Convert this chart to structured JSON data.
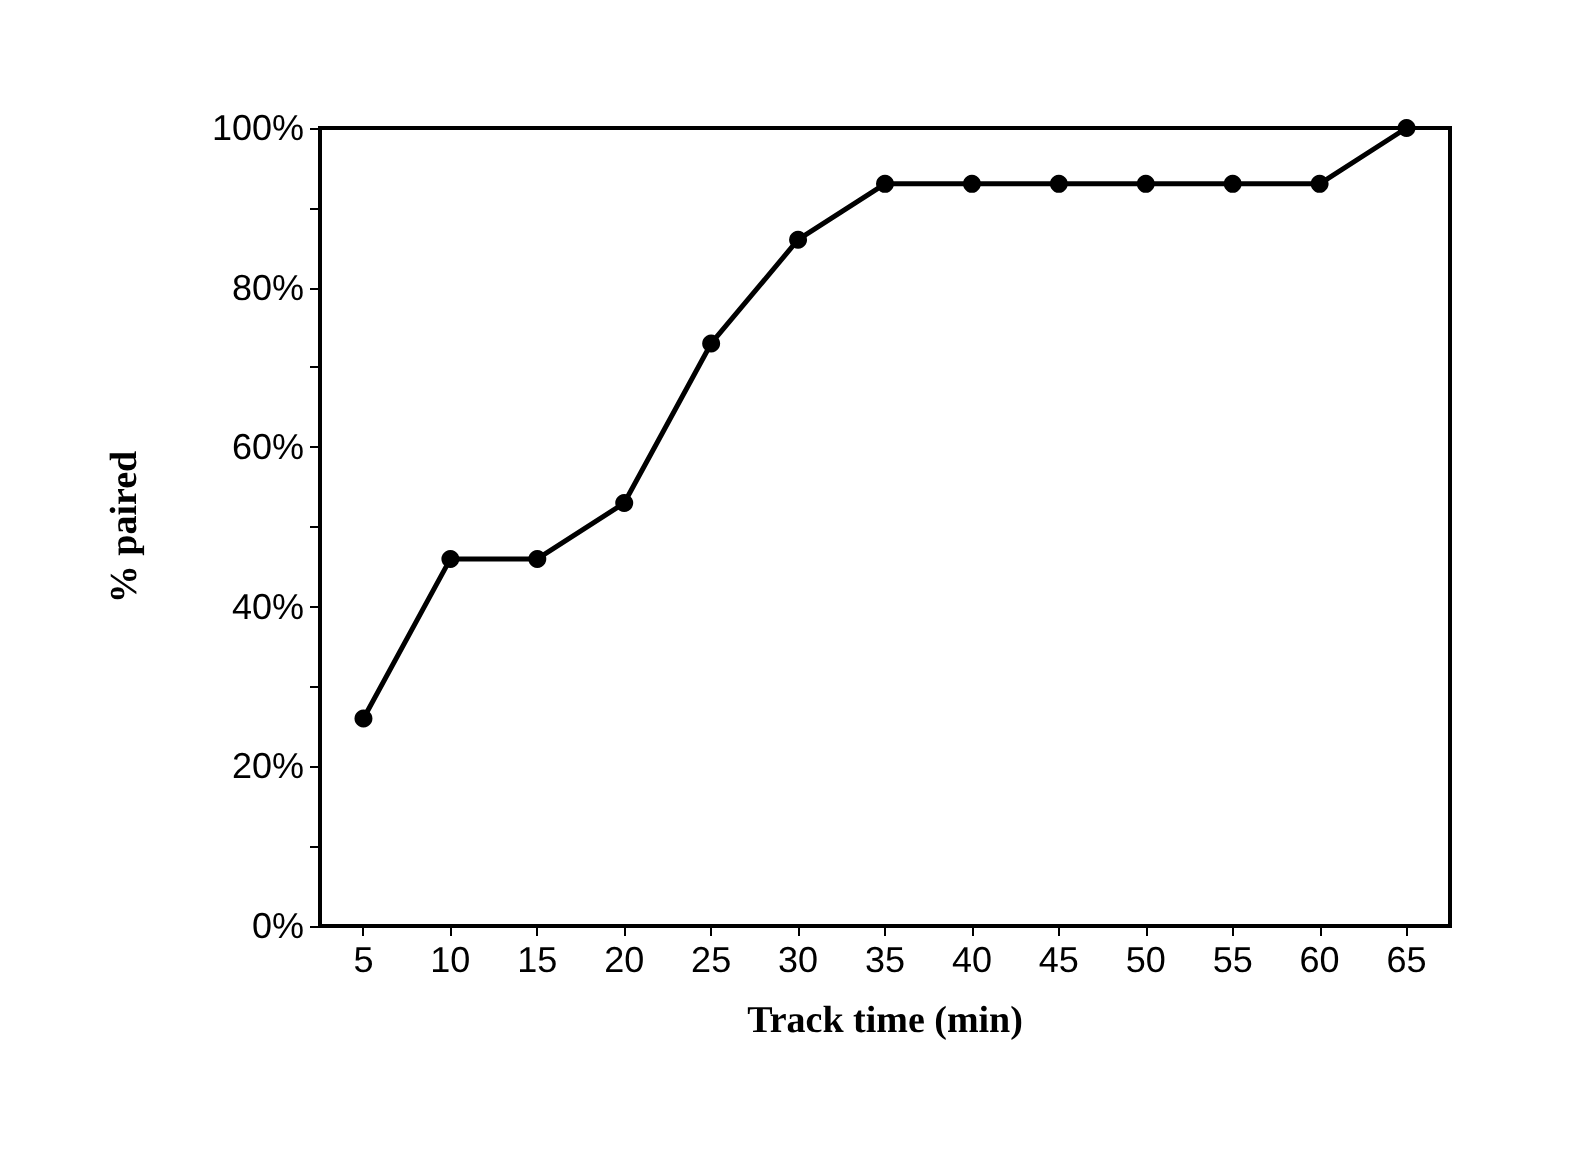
{
  "chart_data": {
    "type": "line",
    "xlabel": "Track time (min)",
    "ylabel": "% paired",
    "categories": [
      "5",
      "10",
      "15",
      "20",
      "25",
      "30",
      "35",
      "40",
      "45",
      "50",
      "55",
      "60",
      "65"
    ],
    "series": [
      {
        "color": "#000000",
        "values": [
          26,
          46,
          46,
          53,
          73,
          86,
          93,
          93,
          93,
          93,
          93,
          93,
          100
        ]
      }
    ],
    "ylim": [
      0,
      100
    ],
    "yticks": [
      {
        "value": 0,
        "label": "0%"
      },
      {
        "value": 10,
        "label": null
      },
      {
        "value": 20,
        "label": "20%"
      },
      {
        "value": 30,
        "label": null
      },
      {
        "value": 40,
        "label": "40%"
      },
      {
        "value": 50,
        "label": null
      },
      {
        "value": 60,
        "label": "60%"
      },
      {
        "value": 70,
        "label": null
      },
      {
        "value": 80,
        "label": "80%"
      },
      {
        "value": 90,
        "label": null
      },
      {
        "value": 100,
        "label": "100%"
      }
    ],
    "grid": false,
    "marker": "circle",
    "line_style": "solid"
  }
}
